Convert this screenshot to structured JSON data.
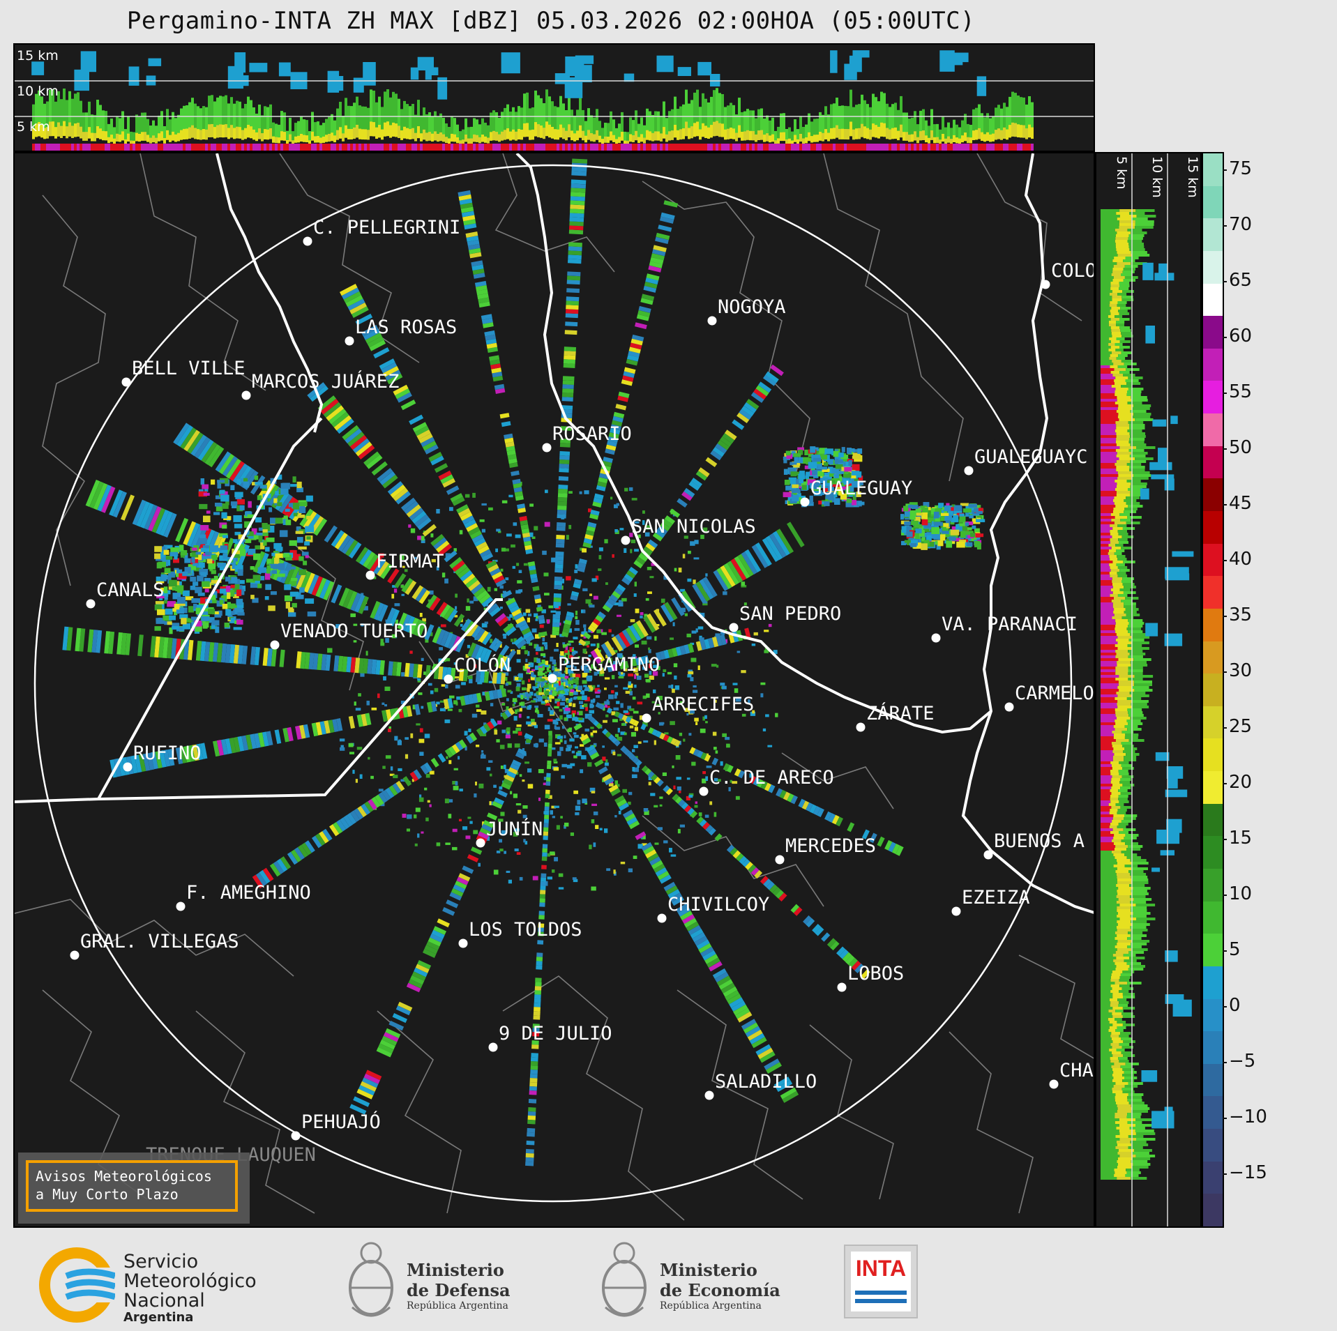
{
  "title": "Pergamino-INTA ZH MAX [dBZ] 05.03.2026 02:00HOA (05:00UTC)",
  "heights": {
    "h15": "15 km",
    "h10": "10 km",
    "h5": "5 km"
  },
  "cities": {
    "pellegrini": "C. PELLEGRINI",
    "lasrosas": "LAS ROSAS",
    "bellville": "BELL VILLE",
    "marcos": "MARCOS JUÁREZ",
    "rosario": "ROSARIO",
    "nogoya": "NOGOYA",
    "gualeguay": "GUALEGUAY",
    "gualeguaych": "GUALEGUAYC",
    "colon_er": "COLO",
    "sannicolas": "SAN NICOLAS",
    "firmat": "FIRMAT",
    "canals": "CANALS",
    "venado": "VENADO TUERTO",
    "sanpedro": "SAN PEDRO",
    "vparanacito": "VA. PARANACI",
    "colon": "COLÓN",
    "pergamino": "PERGAMINO",
    "arrecifes": "ARRECIFES",
    "zarate": "ZÁRATE",
    "carmelo": "CARMELO",
    "rufino": "RUFINO",
    "careco": "C. DE ARECO",
    "junin": "JUNÍN",
    "mercedes": "MERCEDES",
    "buenosaires": "BUENOS A",
    "ameghino": "F. AMEGHINO",
    "ezeiza": "EZEIZA",
    "chivilcoy": "CHIVILCOY",
    "villegas": "GRAL. VILLEGAS",
    "lostoldos": "LOS TOLDOS",
    "lobos": "LOBOS",
    "nuevejulio": "9 DE JULIO",
    "cha": "CHA",
    "saladillo": "SALADILLO",
    "pehuajo": "PEHUAJÓ",
    "trenque": "TRENQUE LAUQUEN"
  },
  "colorbar": {
    "ticks": [
      "75",
      "70",
      "65",
      "60",
      "55",
      "50",
      "45",
      "40",
      "35",
      "30",
      "25",
      "20",
      "15",
      "10",
      "5",
      "0",
      "−5",
      "−10",
      "−15"
    ],
    "colors_top_to_bottom": [
      "#9adfc4",
      "#7fd6b8",
      "#b2e6d3",
      "#d9f3ea",
      "#ffffff",
      "#8a0a8a",
      "#c21fb7",
      "#e61ee0",
      "#f06aa8",
      "#c40050",
      "#8b0000",
      "#b80000",
      "#dd1020",
      "#f0302a",
      "#e07a10",
      "#d89a20",
      "#c8b020",
      "#d6d12a",
      "#e6e020",
      "#f0ec30",
      "#2a7a1c",
      "#2d8c22",
      "#38a02a",
      "#40b830",
      "#4cd038",
      "#1ea0d0",
      "#2790c8",
      "#2a80b8",
      "#2e6aa0",
      "#345a90",
      "#384c80",
      "#3a4070",
      "#3c3862"
    ]
  },
  "warning": {
    "line1": "Avisos Meteorológicos",
    "line2": "a Muy Corto Plazo"
  },
  "logos": {
    "smn_line1": "Servicio",
    "smn_line2": "Meteorológico",
    "smn_line3": "Nacional",
    "smn_line4": "Argentina",
    "def_line1": "Ministerio",
    "def_line2": "de Defensa",
    "def_line3": "República Argentina",
    "eco_line1": "Ministerio",
    "eco_line2": "de Economía",
    "eco_line3": "República Argentina",
    "inta": "INTA"
  }
}
